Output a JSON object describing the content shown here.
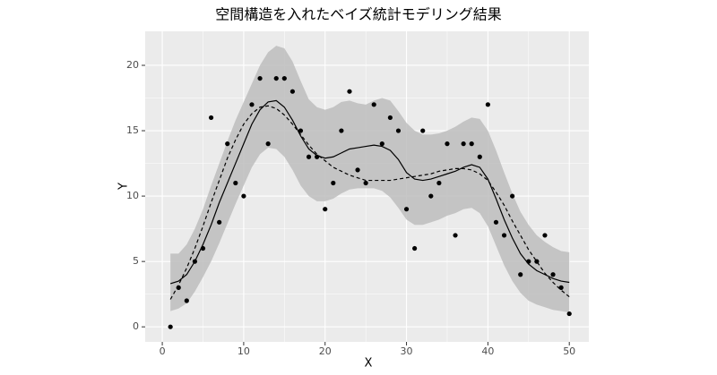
{
  "chart_data": {
    "type": "scatter",
    "title": "空間構造を入れたベイズ統計モデリング結果",
    "x_label": "X",
    "y_label": "Y",
    "x": [
      1,
      2,
      3,
      4,
      5,
      6,
      7,
      8,
      9,
      10,
      11,
      12,
      13,
      14,
      15,
      16,
      17,
      18,
      19,
      20,
      21,
      22,
      23,
      24,
      25,
      26,
      27,
      28,
      29,
      30,
      31,
      32,
      33,
      34,
      35,
      36,
      37,
      38,
      39,
      40,
      41,
      42,
      43,
      44,
      45,
      46,
      47,
      48,
      49,
      50
    ],
    "points": [
      0,
      3,
      2,
      5,
      6,
      16,
      8,
      14,
      11,
      10,
      17,
      19,
      14,
      19,
      19,
      18,
      15,
      13,
      13,
      9,
      11,
      15,
      18,
      12,
      11,
      17,
      14,
      16,
      15,
      9,
      6,
      15,
      10,
      11,
      14,
      7,
      14,
      14,
      13,
      17,
      8,
      7,
      10,
      4,
      5,
      5,
      7,
      4,
      3,
      1
    ],
    "median": [
      3.3,
      3.5,
      4,
      5,
      6.3,
      7.8,
      9.5,
      11,
      12.5,
      14,
      15.5,
      16.6,
      17.2,
      17.3,
      16.8,
      15.8,
      14.6,
      13.6,
      13.1,
      12.9,
      13,
      13.3,
      13.6,
      13.7,
      13.8,
      13.9,
      13.8,
      13.5,
      12.8,
      11.8,
      11.3,
      11.2,
      11.3,
      11.5,
      11.7,
      11.9,
      12.2,
      12.4,
      12.2,
      11.3,
      9.8,
      8.2,
      6.8,
      5.6,
      4.8,
      4.3,
      4,
      3.7,
      3.5,
      3.4
    ],
    "trend": [
      2.1,
      3.2,
      4.5,
      6,
      7.7,
      9.5,
      11.2,
      12.9,
      14.3,
      15.5,
      16.3,
      16.8,
      16.9,
      16.7,
      16.2,
      15.5,
      14.7,
      13.9,
      13.2,
      12.7,
      12.2,
      11.9,
      11.6,
      11.4,
      11.2,
      11.2,
      11.2,
      11.2,
      11.3,
      11.4,
      11.5,
      11.6,
      11.7,
      11.9,
      12,
      12.1,
      12.1,
      12,
      11.7,
      11.2,
      10.3,
      9.3,
      8.1,
      7,
      5.9,
      5,
      4.1,
      3.4,
      2.8,
      2.3
    ],
    "upper": [
      5.6,
      5.6,
      6.3,
      7.5,
      9,
      10.8,
      12.5,
      14.2,
      15.8,
      17.2,
      18.6,
      20,
      21,
      21.5,
      21.3,
      20.3,
      18.8,
      17.4,
      16.8,
      16.6,
      16.8,
      17.2,
      17.3,
      17.1,
      17,
      17.3,
      17.5,
      17.3,
      16.5,
      15.6,
      15,
      14.7,
      14.7,
      14.8,
      15,
      15.3,
      15.7,
      16,
      15.9,
      15,
      13.5,
      11.8,
      10.2,
      8.8,
      7.8,
      7,
      6.5,
      6.1,
      5.8,
      5.7
    ],
    "lower": [
      1.2,
      1.4,
      1.8,
      2.7,
      3.8,
      5,
      6.4,
      7.9,
      9.4,
      10.8,
      12.2,
      13.2,
      13.7,
      13.6,
      13,
      12,
      10.8,
      10,
      9.6,
      9.6,
      9.8,
      10.2,
      10.5,
      10.6,
      10.6,
      10.6,
      10.4,
      9.9,
      9.1,
      8.2,
      7.8,
      7.8,
      8,
      8.2,
      8.5,
      8.7,
      9,
      9.1,
      8.7,
      7.7,
      6.2,
      4.7,
      3.5,
      2.6,
      2,
      1.7,
      1.5,
      1.3,
      1.2,
      1.1
    ],
    "point_color": "#000000",
    "line_color": "#000000",
    "ribbon_color": "#bdbdbd",
    "xlim": [
      -2.1,
      52.4
    ],
    "ylim": [
      -1.15,
      22.6
    ],
    "xticks": [
      0,
      10,
      20,
      30,
      40,
      50
    ],
    "yticks": [
      0,
      5,
      10,
      15,
      20
    ],
    "grid": true
  }
}
